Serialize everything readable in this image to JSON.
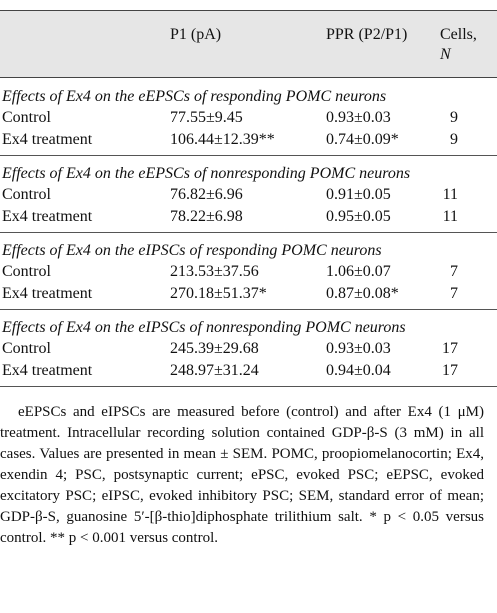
{
  "header": {
    "columns": [
      "P1 (pA)",
      "PPR (P2/P1)"
    ],
    "cells_label": "Cells,",
    "cells_var": "N"
  },
  "sections": [
    {
      "title": "Effects of Ex4 on the eEPSCs of responding POMC neurons",
      "rows": [
        [
          "Control",
          "77.55±9.45",
          "0.93±0.03",
          "9"
        ],
        [
          "Ex4 treatment",
          "106.44±12.39**",
          "0.74±0.09*",
          "9"
        ]
      ]
    },
    {
      "title": "Effects of Ex4 on the eEPSCs of nonresponding POMC neurons",
      "rows": [
        [
          "Control",
          "76.82±6.96",
          "0.91±0.05",
          "11"
        ],
        [
          "Ex4 treatment",
          "78.22±6.98",
          "0.95±0.05",
          "11"
        ]
      ]
    },
    {
      "title": "Effects of Ex4 on the eIPSCs of responding POMC neurons",
      "rows": [
        [
          "Control",
          "213.53±37.56",
          "1.06±0.07",
          "7"
        ],
        [
          "Ex4 treatment",
          "270.18±51.37*",
          "0.87±0.08*",
          "7"
        ]
      ]
    },
    {
      "title": "Effects of Ex4 on the eIPSCs of nonresponding POMC neurons",
      "rows": [
        [
          "Control",
          "245.39±29.68",
          "0.93±0.03",
          "17"
        ],
        [
          "Ex4 treatment",
          "248.97±31.24",
          "0.94±0.04",
          "17"
        ]
      ]
    }
  ],
  "footnote": "eEPSCs and eIPSCs are measured before (control) and after Ex4 (1 μM) treatment. Intracellular recording solution contained GDP-β-S (3 mM) in all cases. Values are presented in mean ± SEM. POMC, proopiomelanocortin; Ex4, exendin 4; PSC, postsynaptic current; ePSC, evoked PSC; eEPSC, evoked excitatory PSC; eIPSC, evoked inhibitory PSC; SEM, standard error of mean; GDP-β-S, guanosine 5′-[β-thio]diphosphate trilithium salt. * p < 0.05 versus control. ** p < 0.001 versus control."
}
